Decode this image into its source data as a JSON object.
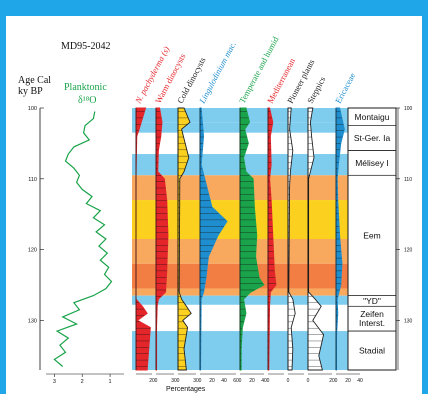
{
  "chart_data": {
    "type": "area",
    "title": "MD95-2042",
    "y_axis": {
      "label_lines": [
        "Age Cal",
        "ky BP"
      ],
      "ticks": [
        100,
        110,
        120,
        130
      ],
      "range": [
        100,
        137
      ]
    },
    "isotope": {
      "label_lines": [
        "Planktonic",
        "δ¹⁸O"
      ],
      "color": "#1aa34a",
      "x_ticks": [
        "3",
        "2",
        "1"
      ],
      "axis_range": [
        3.3,
        0.5
      ],
      "points": [
        {
          "age": 100.5,
          "v": 1.55
        },
        {
          "age": 101.5,
          "v": 1.6
        },
        {
          "age": 102.5,
          "v": 1.9
        },
        {
          "age": 103.5,
          "v": 1.95
        },
        {
          "age": 104.5,
          "v": 1.75
        },
        {
          "age": 105.5,
          "v": 2.3
        },
        {
          "age": 106.5,
          "v": 2.5
        },
        {
          "age": 107.5,
          "v": 2.6
        },
        {
          "age": 108.5,
          "v": 2.3
        },
        {
          "age": 109.5,
          "v": 2.1
        },
        {
          "age": 110.5,
          "v": 2.2
        },
        {
          "age": 111.5,
          "v": 2.0
        },
        {
          "age": 112.5,
          "v": 1.65
        },
        {
          "age": 113.5,
          "v": 1.85
        },
        {
          "age": 114.5,
          "v": 1.35
        },
        {
          "age": 115.5,
          "v": 1.6
        },
        {
          "age": 116.5,
          "v": 1.2
        },
        {
          "age": 117.5,
          "v": 1.5
        },
        {
          "age": 118.5,
          "v": 1.15
        },
        {
          "age": 119.5,
          "v": 1.4
        },
        {
          "age": 120.5,
          "v": 1.1
        },
        {
          "age": 121.5,
          "v": 1.35
        },
        {
          "age": 122.5,
          "v": 1.05
        },
        {
          "age": 123.5,
          "v": 1.2
        },
        {
          "age": 124.5,
          "v": 0.95
        },
        {
          "age": 125.5,
          "v": 1.15
        },
        {
          "age": 126.5,
          "v": 1.6
        },
        {
          "age": 127.5,
          "v": 2.3
        },
        {
          "age": 128.5,
          "v": 2.1
        },
        {
          "age": 129.5,
          "v": 2.7
        },
        {
          "age": 130.5,
          "v": 2.2
        },
        {
          "age": 131.5,
          "v": 2.9
        },
        {
          "age": 132.5,
          "v": 2.5
        },
        {
          "age": 133.5,
          "v": 2.8
        },
        {
          "age": 134.5,
          "v": 2.6
        },
        {
          "age": 135.5,
          "v": 3.0
        },
        {
          "age": 136.5,
          "v": 2.7
        }
      ]
    },
    "bands": [
      {
        "from": 100,
        "to": 102,
        "type": "stadial"
      },
      {
        "from": 102,
        "to": 103.5,
        "type": "stadial"
      },
      {
        "from": 103.5,
        "to": 106.5,
        "type": "interstadial"
      },
      {
        "from": 106.5,
        "to": 109.5,
        "type": "stadial"
      },
      {
        "from": 109.5,
        "to": 113,
        "type": "interglacial-edge"
      },
      {
        "from": 113,
        "to": 118.5,
        "type": "interglacial-core"
      },
      {
        "from": 118.5,
        "to": 122,
        "type": "interglacial-edge"
      },
      {
        "from": 122,
        "to": 125.5,
        "type": "interglacial-deep"
      },
      {
        "from": 125.5,
        "to": 126.5,
        "type": "interglacial-edge"
      },
      {
        "from": 126.5,
        "to": 127.8,
        "type": "stadial"
      },
      {
        "from": 127.8,
        "to": 131.5,
        "type": "interstadial"
      },
      {
        "from": 131.5,
        "to": 137,
        "type": "stadial"
      }
    ],
    "band_colors": {
      "stadial": "#7fcdee",
      "interstadial": "#ffffff",
      "interglacial-edge": "#f9a95e",
      "interglacial-core": "#fbd01e",
      "interglacial-deep": "#f27e44"
    },
    "zones": [
      {
        "label": "Montaigu",
        "from": 100,
        "to": 102.5
      },
      {
        "label": "St-Ger. Ia",
        "from": 102.5,
        "to": 106
      },
      {
        "label": "Mélisey I",
        "from": 106,
        "to": 109.5
      },
      {
        "label": "Eem",
        "from": 109.5,
        "to": 126.5
      },
      {
        "label": "\"YD\"",
        "from": 126.5,
        "to": 128
      },
      {
        "label": "Zeifen\nInterst.",
        "from": 128,
        "to": 131.5
      },
      {
        "label": "Stadial",
        "from": 131.5,
        "to": 137
      }
    ],
    "right_ticks": [
      100,
      110,
      120,
      130
    ],
    "xlabel": "Percentages",
    "pollen_series": [
      {
        "name": "N. pachyderma (s)",
        "color": "#e4262b",
        "label_color": "#e4262b",
        "fill": "#e4262b",
        "scale": 20,
        "ticks": [
          "20"
        ],
        "profile": [
          [
            100,
            12
          ],
          [
            103,
            4
          ],
          [
            104,
            1
          ],
          [
            110,
            0
          ],
          [
            127,
            0
          ],
          [
            128,
            8
          ],
          [
            129,
            14
          ],
          [
            130,
            2
          ],
          [
            131,
            18
          ],
          [
            134,
            16
          ],
          [
            137,
            14
          ]
        ]
      },
      {
        "name": "Warm dinocysts",
        "color": "#e4262b",
        "label_color": "#e4262b",
        "fill": "#e4262b",
        "scale": 30,
        "ticks": [
          "0",
          "30"
        ],
        "profile": [
          [
            100,
            6
          ],
          [
            102,
            10
          ],
          [
            104,
            8
          ],
          [
            106,
            4
          ],
          [
            109,
            3
          ],
          [
            110,
            14
          ],
          [
            113,
            18
          ],
          [
            118,
            20
          ],
          [
            123,
            18
          ],
          [
            126,
            16
          ],
          [
            127,
            4
          ],
          [
            128,
            2
          ],
          [
            131,
            1
          ],
          [
            137,
            1
          ]
        ]
      },
      {
        "name": "Cold dinocysts",
        "color": "#222222",
        "label_color": "#222222",
        "fill": "#fbd01e",
        "scale": 30,
        "ticks": [
          "0",
          "30"
        ],
        "profile": [
          [
            100,
            10
          ],
          [
            102,
            20
          ],
          [
            103,
            6
          ],
          [
            105,
            12
          ],
          [
            107,
            18
          ],
          [
            109,
            10
          ],
          [
            110,
            3
          ],
          [
            126,
            2
          ],
          [
            127,
            6
          ],
          [
            128,
            14
          ],
          [
            129,
            22
          ],
          [
            130,
            8
          ],
          [
            131,
            16
          ],
          [
            134,
            10
          ],
          [
            137,
            14
          ]
        ]
      },
      {
        "name": "Lingulodinium mac.",
        "color": "#1f8ecf",
        "label_color": "#1f8ecf",
        "fill": "#1f8ecf",
        "scale": 60,
        "ticks": [
          "0",
          "20",
          "40",
          "60"
        ],
        "profile": [
          [
            100,
            2
          ],
          [
            104,
            6
          ],
          [
            108,
            2
          ],
          [
            110,
            8
          ],
          [
            114,
            20
          ],
          [
            116,
            45
          ],
          [
            118,
            30
          ],
          [
            121,
            14
          ],
          [
            124,
            10
          ],
          [
            126,
            6
          ],
          [
            127,
            2
          ],
          [
            137,
            1
          ]
        ]
      },
      {
        "name": "Temperate and humid",
        "color": "#1aa34a",
        "label_color": "#1aa34a",
        "fill": "#1aa34a",
        "scale": 40,
        "ticks": [
          "0",
          "20",
          "40"
        ],
        "profile": [
          [
            100,
            10
          ],
          [
            102,
            16
          ],
          [
            103,
            8
          ],
          [
            105,
            14
          ],
          [
            107,
            6
          ],
          [
            109,
            10
          ],
          [
            110,
            22
          ],
          [
            114,
            24
          ],
          [
            118,
            28
          ],
          [
            121,
            26
          ],
          [
            124,
            32
          ],
          [
            125,
            40
          ],
          [
            126,
            18
          ],
          [
            127,
            6
          ],
          [
            129,
            10
          ],
          [
            131,
            4
          ],
          [
            134,
            2
          ],
          [
            137,
            2
          ]
        ]
      },
      {
        "name": "Mediterranean",
        "color": "#e4262b",
        "label_color": "#e4262b",
        "fill": "#e4262b",
        "scale": 20,
        "ticks": [
          "0"
        ],
        "profile": [
          [
            100,
            2
          ],
          [
            102,
            6
          ],
          [
            104,
            3
          ],
          [
            108,
            4
          ],
          [
            110,
            2
          ],
          [
            113,
            4
          ],
          [
            118,
            6
          ],
          [
            123,
            8
          ],
          [
            125,
            10
          ],
          [
            126,
            3
          ],
          [
            128,
            2
          ],
          [
            137,
            1
          ]
        ]
      },
      {
        "name": "Pioneer plants",
        "color": "#222222",
        "label_color": "#222222",
        "fill": "#ffffff",
        "scale": 20,
        "ticks": [
          "0"
        ],
        "profile": [
          [
            100,
            4
          ],
          [
            103,
            2
          ],
          [
            106,
            6
          ],
          [
            109,
            3
          ],
          [
            111,
            2
          ],
          [
            126,
            1
          ],
          [
            127,
            6
          ],
          [
            129,
            9
          ],
          [
            131,
            4
          ],
          [
            134,
            6
          ],
          [
            137,
            5
          ]
        ]
      },
      {
        "name": "Steppics",
        "color": "#222222",
        "label_color": "#222222",
        "fill": "#ffffff",
        "scale": 40,
        "ticks": [
          "0",
          "20"
        ],
        "profile": [
          [
            100,
            8
          ],
          [
            102,
            4
          ],
          [
            104,
            6
          ],
          [
            107,
            10
          ],
          [
            109,
            4
          ],
          [
            110,
            1
          ],
          [
            126,
            1
          ],
          [
            127,
            12
          ],
          [
            128,
            22
          ],
          [
            130,
            8
          ],
          [
            132,
            26
          ],
          [
            135,
            18
          ],
          [
            137,
            24
          ]
        ]
      },
      {
        "name": "Ericaceae",
        "color": "#1f8ecf",
        "label_color": "#1f8ecf",
        "fill": "#1f8ecf",
        "scale": 40,
        "ticks": [
          "0",
          "20",
          "40"
        ],
        "profile": [
          [
            100,
            6
          ],
          [
            103,
            14
          ],
          [
            105,
            8
          ],
          [
            108,
            4
          ],
          [
            110,
            2
          ],
          [
            113,
            3
          ],
          [
            118,
            6
          ],
          [
            122,
            10
          ],
          [
            125,
            8
          ],
          [
            127,
            2
          ],
          [
            129,
            3
          ],
          [
            132,
            1
          ],
          [
            137,
            1
          ]
        ]
      }
    ]
  }
}
